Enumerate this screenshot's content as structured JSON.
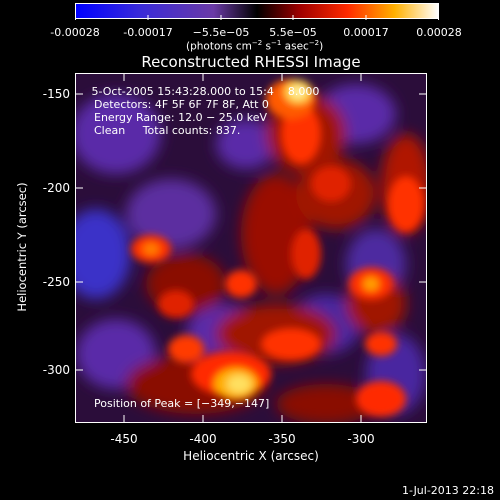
{
  "colorbar": {
    "ticks": [
      "-0.00028",
      "-0.00017",
      "−5.5e−05",
      "5.5e−05",
      "0.00017",
      "0.00028"
    ],
    "units_text": "(photons cm",
    "units_exp1": "−2",
    "units_mid": " s",
    "units_exp2": "−1",
    "units_end": " asec",
    "units_exp3": "−2",
    "units_close": ")"
  },
  "image": {
    "title": "Reconstructed RHESSI Image",
    "info_line1": " 5-Oct-2005 15:43:28.000 to 15:4    8.000",
    "info_line2": "Detectors: 4F 5F 6F 7F 8F, Att 0",
    "info_line3": "Energy Range: 12.0 − 25.0 keV",
    "info_line4": "Clean     Total counts: 837.",
    "peak_label": "Position of Peak = [−349,−147]"
  },
  "axes": {
    "xlabel": "Heliocentric X (arcsec)",
    "ylabel": "Heliocentric Y (arcsec)",
    "x_ticks": [
      "-450",
      "-400",
      "-350",
      "-300"
    ],
    "y_ticks": [
      "-150",
      "-200",
      "-250",
      "-300"
    ]
  },
  "footer": {
    "timestamp": "1-Jul-2013 22:18"
  }
}
